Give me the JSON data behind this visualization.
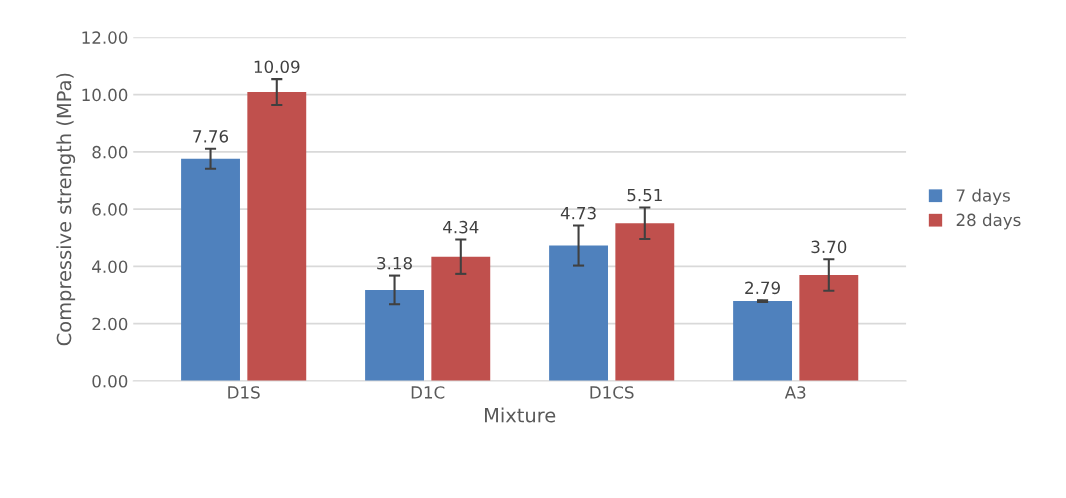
{
  "chart_data": {
    "type": "bar",
    "xlabel": "Mixture",
    "ylabel": "Compressive strength (MPa)",
    "categories": [
      "D1S",
      "D1C",
      "D1CS",
      "A3"
    ],
    "series": [
      {
        "name": "7 days",
        "color": "#4f81bd",
        "values": [
          7.76,
          3.18,
          4.73,
          2.79
        ],
        "value_labels": [
          "7.76",
          "3.18",
          "4.73",
          "2.79"
        ],
        "errors": [
          0.35,
          0.5,
          0.7,
          0.03
        ]
      },
      {
        "name": "28 days",
        "color": "#c0504d",
        "values": [
          10.09,
          4.34,
          5.51,
          3.7
        ],
        "value_labels": [
          "10.09",
          "4.34",
          "5.51",
          "3.70"
        ],
        "errors": [
          0.45,
          0.6,
          0.55,
          0.55
        ]
      }
    ],
    "ylim": [
      0,
      12
    ],
    "yticks": [
      {
        "value": 0,
        "label": "0.00"
      },
      {
        "value": 2,
        "label": "2.00"
      },
      {
        "value": 4,
        "label": "4.00"
      },
      {
        "value": 6,
        "label": "6.00"
      },
      {
        "value": 8,
        "label": "8.00"
      },
      {
        "value": 10,
        "label": "10.00"
      },
      {
        "value": 12,
        "label": "12.00"
      }
    ],
    "grid": "y",
    "legend": "right"
  }
}
